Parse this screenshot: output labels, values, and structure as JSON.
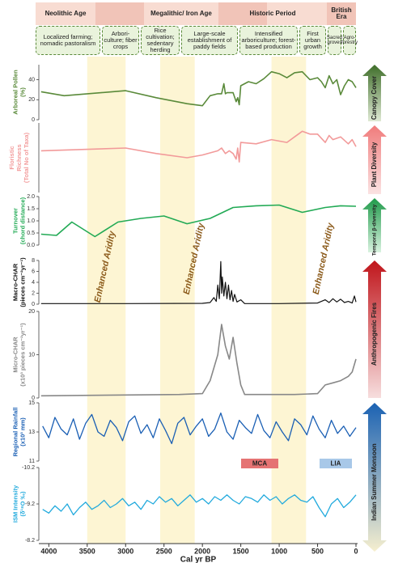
{
  "header": {
    "periods": [
      "Neolithic Age",
      "Megalithic/ Iron Age",
      "Historic Period",
      "British Era"
    ],
    "practices": [
      "Localized farming; nomadic pastoralism",
      "Arbori-culture; fiber crops",
      "Rice cultivation; sedentary herding",
      "Large-scale establishment of paddy fields",
      "Intensified arboriculture; forest-based production",
      "First urban growth",
      "Sacred groves",
      "Agro-forestry"
    ]
  },
  "indicators": [
    "Canopy Cover",
    "Plant Diversity",
    "Temporal β-diversity",
    "Anthropogenic Fires",
    "Indian Summer Monsoon"
  ],
  "shaded_periods": [
    [
      3500,
      3000
    ],
    [
      2550,
      2100
    ],
    [
      1100,
      650
    ]
  ],
  "annotations": [
    "Enhanced Aridity",
    "Enhanced Aridity",
    "Enhanced Aridity"
  ],
  "climate_events": [
    {
      "label": "MCA",
      "color": "#e57373"
    },
    {
      "label": "LIA",
      "color": "#a8c8e8"
    }
  ],
  "chart_data": [
    {
      "type": "line",
      "ylabel": [
        "Arboreal Pollen",
        "(%)"
      ],
      "color": "#5a8a3a",
      "xlim": [
        4130,
        0
      ],
      "ylim": [
        0,
        55
      ],
      "yticks": [
        0,
        20,
        40
      ],
      "x": [
        4100,
        3800,
        3000,
        2600,
        2200,
        2000,
        1900,
        1800,
        1750,
        1720,
        1700,
        1680,
        1600,
        1560,
        1540,
        1520,
        1500,
        1400,
        1300,
        1200,
        1100,
        1000,
        900,
        800,
        700,
        600,
        500,
        450,
        400,
        350,
        300,
        250,
        200,
        150,
        100,
        50,
        0
      ],
      "values": [
        28,
        24,
        29,
        22,
        16,
        14,
        24,
        26,
        26,
        36,
        26,
        27,
        27,
        18,
        22,
        15,
        34,
        38,
        36,
        41,
        48,
        46,
        42,
        47,
        48,
        40,
        42,
        38,
        32,
        44,
        36,
        40,
        25,
        34,
        40,
        38,
        32
      ]
    },
    {
      "type": "line",
      "ylabel": [
        "Floristic",
        "Richness",
        "(Total No of Taxa)"
      ],
      "color": "#f29a9a",
      "xlim": [
        4130,
        0
      ],
      "ylim": [
        0,
        50
      ],
      "x": [
        4100,
        3000,
        2600,
        2200,
        2000,
        1800,
        1750,
        1700,
        1650,
        1600,
        1560,
        1540,
        1520,
        1500,
        1300,
        1100,
        900,
        800,
        700,
        600,
        500,
        400,
        350,
        300,
        200,
        100,
        50,
        0
      ],
      "values": [
        30,
        32,
        28,
        25,
        27,
        30,
        32,
        28,
        30,
        28,
        24,
        32,
        22,
        36,
        35,
        38,
        36,
        40,
        44,
        42,
        42,
        36,
        41,
        38,
        40,
        35,
        38,
        33
      ]
    },
    {
      "type": "line",
      "ylabel": [
        "Turnover",
        "(chord distance)"
      ],
      "color": "#22aa55",
      "xlim": [
        4130,
        0
      ],
      "ylim": [
        0,
        2.0
      ],
      "yticks": [
        {
          "value": 0,
          "label": "0.0"
        },
        0.5,
        {
          "value": 1,
          "label": "1.0"
        },
        1.5,
        {
          "value": 2,
          "label": "2.0"
        }
      ],
      "x": [
        4100,
        3900,
        3700,
        3400,
        3100,
        2800,
        2500,
        2200,
        1900,
        1600,
        1300,
        1000,
        700,
        400,
        200,
        0
      ],
      "values": [
        0.45,
        0.4,
        0.95,
        0.35,
        0.95,
        1.1,
        1.2,
        0.88,
        1.1,
        1.55,
        1.62,
        1.65,
        1.35,
        1.55,
        1.62,
        1.6
      ]
    },
    {
      "type": "line",
      "ylabel": [
        "Macro-CHAR",
        "(pieces cm⁻²yr⁻¹)"
      ],
      "color": "#111111",
      "xlim": [
        4130,
        0
      ],
      "ylim": [
        0,
        8
      ],
      "yticks": [
        0,
        2,
        4,
        6,
        8
      ],
      "x": [
        4100,
        3000,
        2000,
        1900,
        1850,
        1820,
        1800,
        1780,
        1760,
        1750,
        1740,
        1720,
        1700,
        1680,
        1660,
        1640,
        1620,
        1600,
        1580,
        1550,
        1500,
        1450,
        1000,
        500,
        400,
        350,
        300,
        250,
        200,
        150,
        100,
        50,
        20,
        0
      ],
      "values": [
        0.1,
        0.1,
        0.15,
        0.3,
        1.2,
        0.5,
        3.5,
        1,
        7.8,
        2,
        5,
        1.5,
        4,
        1,
        3.5,
        0.8,
        2.5,
        0.5,
        1.8,
        0.4,
        0.8,
        0.1,
        0.1,
        0.2,
        0.8,
        0.3,
        1,
        0.4,
        0.9,
        0.3,
        0.5,
        0.2,
        1.5,
        0.4
      ]
    },
    {
      "type": "line",
      "ylabel": [
        "Micro-CHAR",
        "(x10³ pieces cm⁻²yr⁻¹)"
      ],
      "color": "#888888",
      "xlim": [
        4130,
        0
      ],
      "ylim": [
        0,
        20
      ],
      "yticks": [
        0,
        10,
        20
      ],
      "x": [
        4100,
        2300,
        2000,
        1900,
        1800,
        1750,
        1700,
        1650,
        1600,
        1550,
        1500,
        1450,
        800,
        500,
        400,
        300,
        200,
        100,
        50,
        0
      ],
      "values": [
        0.5,
        0.8,
        1,
        4,
        10,
        17,
        12,
        9,
        14,
        8,
        3,
        0.8,
        0.8,
        1,
        3,
        3.5,
        4,
        5,
        6,
        9
      ]
    },
    {
      "type": "line",
      "ylabel": [
        "Regional Rainfall",
        "(x10³ mm)"
      ],
      "color": "#1a5fb4",
      "xlim": [
        4130,
        0
      ],
      "ylim": [
        11,
        15
      ],
      "yticks": [
        11,
        13,
        15
      ],
      "x": [
        4080,
        4000,
        3920,
        3840,
        3760,
        3680,
        3600,
        3520,
        3440,
        3360,
        3280,
        3200,
        3120,
        3040,
        2960,
        2880,
        2800,
        2720,
        2640,
        2560,
        2480,
        2400,
        2320,
        2240,
        2160,
        2080,
        2000,
        1920,
        1840,
        1760,
        1680,
        1600,
        1520,
        1440,
        1360,
        1280,
        1200,
        1120,
        1040,
        960,
        880,
        800,
        720,
        640,
        560,
        480,
        400,
        320,
        240,
        160,
        80,
        0
      ],
      "values": [
        13.4,
        12.6,
        14.0,
        13.2,
        12.8,
        13.9,
        12.5,
        13.6,
        14.2,
        13.0,
        12.7,
        13.8,
        13.3,
        12.4,
        13.7,
        14.1,
        12.9,
        13.5,
        12.6,
        13.9,
        13.1,
        12.2,
        13.6,
        14.0,
        12.8,
        13.4,
        13.9,
        12.7,
        13.2,
        14.3,
        13.0,
        12.5,
        13.8,
        13.3,
        12.9,
        14.2,
        13.1,
        12.6,
        13.7,
        13.0,
        12.4,
        13.9,
        13.5,
        12.8,
        14.1,
        13.2,
        12.6,
        13.8,
        12.9,
        13.4,
        12.7,
        13.3
      ]
    },
    {
      "type": "line",
      "ylabel": [
        "ISM Intensity",
        "(δ¹⁸O ‰)"
      ],
      "color": "#22aadd",
      "xlim": [
        4130,
        0
      ],
      "ylim": [
        -10.2,
        -8.2
      ],
      "y_inverted": true,
      "yticks": [
        -10.2,
        -9.2,
        -8.2
      ],
      "xticks": [
        4000,
        3500,
        3000,
        2500,
        2000,
        1500,
        1000,
        500,
        0
      ],
      "xlabel": "Cal yr BP",
      "x": [
        4080,
        4000,
        3920,
        3840,
        3760,
        3680,
        3600,
        3520,
        3440,
        3360,
        3280,
        3200,
        3120,
        3040,
        2960,
        2880,
        2800,
        2720,
        2640,
        2560,
        2480,
        2400,
        2320,
        2240,
        2160,
        2080,
        2000,
        1920,
        1840,
        1760,
        1680,
        1600,
        1520,
        1440,
        1360,
        1280,
        1200,
        1120,
        1040,
        960,
        880,
        800,
        720,
        640,
        560,
        480,
        400,
        320,
        240,
        160,
        80,
        0
      ],
      "values": [
        -9.05,
        -8.95,
        -9.15,
        -9.0,
        -9.2,
        -8.9,
        -9.1,
        -9.25,
        -9.05,
        -9.15,
        -9.3,
        -9.1,
        -9.2,
        -9.35,
        -9.15,
        -9.25,
        -9.05,
        -9.3,
        -9.2,
        -9.4,
        -9.25,
        -9.35,
        -9.15,
        -9.3,
        -9.45,
        -9.25,
        -9.35,
        -9.2,
        -9.4,
        -9.3,
        -9.45,
        -9.3,
        -9.2,
        -9.4,
        -9.35,
        -9.25,
        -9.45,
        -9.3,
        -9.4,
        -9.2,
        -9.35,
        -9.45,
        -9.3,
        -9.25,
        -9.4,
        -9.1,
        -8.85,
        -9.2,
        -9.35,
        -9.1,
        -9.25,
        -9.45
      ]
    }
  ]
}
